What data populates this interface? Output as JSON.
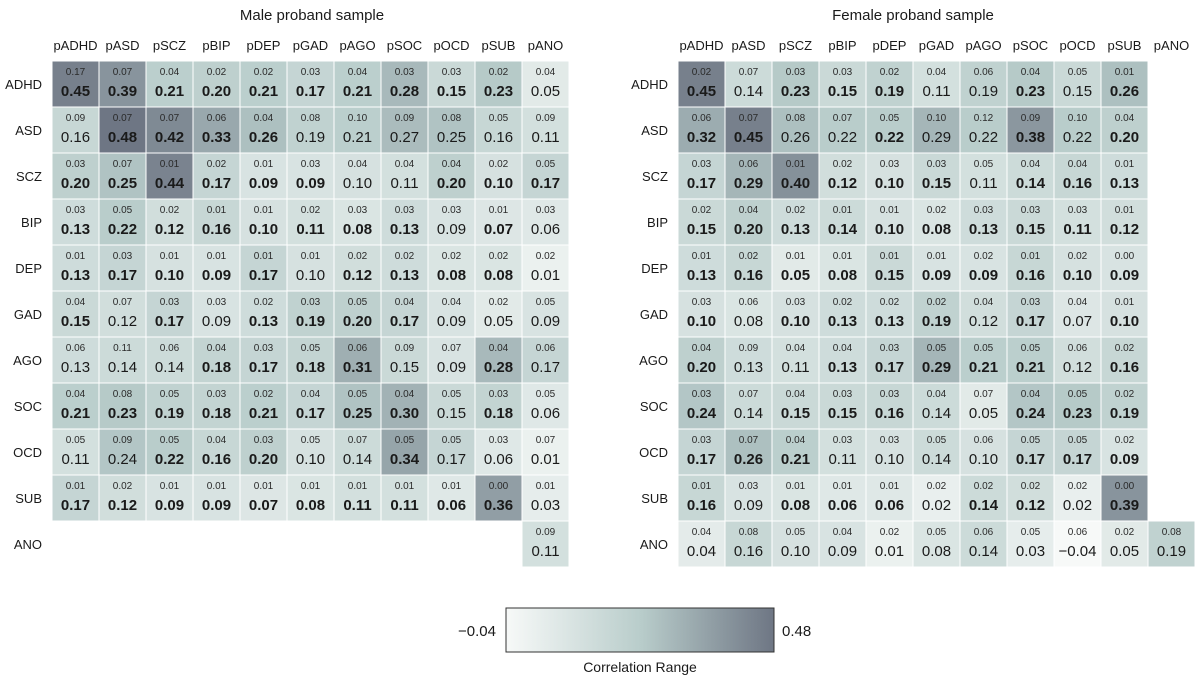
{
  "chart_data": {
    "type": "heatmap",
    "legend": {
      "title": "Correlation Range",
      "min_label": "−0.04",
      "max_label": "0.48",
      "min": -0.04,
      "max": 0.48,
      "color_low": "#f7f9f8",
      "color_mid": "#b9cdcb",
      "color_high": "#6e7684"
    },
    "panels": [
      {
        "title": "Male proband sample",
        "columns": [
          "pADHD",
          "pASD",
          "pSCZ",
          "pBIP",
          "pDEP",
          "pGAD",
          "pAGO",
          "pSOC",
          "pOCD",
          "pSUB",
          "pANO"
        ],
        "rows": [
          {
            "label": "ADHD",
            "est": [
              "0.45",
              "0.39",
              "0.21",
              "0.20",
              "0.21",
              "0.17",
              "0.21",
              "0.28",
              "0.15",
              "0.23",
              "0.05"
            ],
            "se": [
              "0.17",
              "0.07",
              "0.04",
              "0.02",
              "0.02",
              "0.03",
              "0.04",
              "0.03",
              "0.03",
              "0.02",
              "0.04"
            ],
            "bold": [
              1,
              1,
              1,
              1,
              1,
              1,
              1,
              1,
              1,
              1,
              0
            ]
          },
          {
            "label": "ASD",
            "est": [
              "0.16",
              "0.48",
              "0.42",
              "0.33",
              "0.26",
              "0.19",
              "0.21",
              "0.27",
              "0.25",
              "0.16",
              "0.11"
            ],
            "se": [
              "0.09",
              "0.07",
              "0.07",
              "0.06",
              "0.04",
              "0.08",
              "0.10",
              "0.09",
              "0.08",
              "0.05",
              "0.09"
            ],
            "bold": [
              0,
              1,
              1,
              1,
              1,
              0,
              0,
              0,
              0,
              0,
              0
            ]
          },
          {
            "label": "SCZ",
            "est": [
              "0.20",
              "0.25",
              "0.44",
              "0.17",
              "0.09",
              "0.09",
              "0.10",
              "0.11",
              "0.20",
              "0.10",
              "0.17"
            ],
            "se": [
              "0.03",
              "0.07",
              "0.01",
              "0.02",
              "0.01",
              "0.03",
              "0.04",
              "0.04",
              "0.04",
              "0.02",
              "0.05"
            ],
            "bold": [
              1,
              1,
              1,
              1,
              1,
              1,
              0,
              0,
              1,
              1,
              1
            ]
          },
          {
            "label": "BIP",
            "est": [
              "0.13",
              "0.22",
              "0.12",
              "0.16",
              "0.10",
              "0.11",
              "0.08",
              "0.13",
              "0.09",
              "0.07",
              "0.06"
            ],
            "se": [
              "0.03",
              "0.05",
              "0.02",
              "0.01",
              "0.01",
              "0.02",
              "0.03",
              "0.03",
              "0.03",
              "0.01",
              "0.03"
            ],
            "bold": [
              1,
              1,
              1,
              1,
              1,
              1,
              1,
              1,
              0,
              1,
              0
            ]
          },
          {
            "label": "DEP",
            "est": [
              "0.13",
              "0.17",
              "0.10",
              "0.09",
              "0.17",
              "0.10",
              "0.12",
              "0.13",
              "0.08",
              "0.08",
              "0.01"
            ],
            "se": [
              "0.01",
              "0.03",
              "0.01",
              "0.01",
              "0.01",
              "0.01",
              "0.02",
              "0.02",
              "0.02",
              "0.02",
              "0.02"
            ],
            "bold": [
              1,
              1,
              1,
              1,
              1,
              0,
              1,
              1,
              1,
              1,
              0
            ]
          },
          {
            "label": "GAD",
            "est": [
              "0.15",
              "0.12",
              "0.17",
              "0.09",
              "0.13",
              "0.19",
              "0.20",
              "0.17",
              "0.09",
              "0.05",
              "0.09"
            ],
            "se": [
              "0.04",
              "0.07",
              "0.03",
              "0.03",
              "0.02",
              "0.03",
              "0.05",
              "0.04",
              "0.04",
              "0.02",
              "0.05"
            ],
            "bold": [
              1,
              0,
              1,
              0,
              1,
              1,
              1,
              1,
              0,
              0,
              0
            ]
          },
          {
            "label": "AGO",
            "est": [
              "0.13",
              "0.14",
              "0.14",
              "0.18",
              "0.17",
              "0.18",
              "0.31",
              "0.15",
              "0.09",
              "0.28",
              "0.17"
            ],
            "se": [
              "0.06",
              "0.11",
              "0.06",
              "0.04",
              "0.03",
              "0.05",
              "0.06",
              "0.09",
              "0.07",
              "0.04",
              "0.06"
            ],
            "bold": [
              0,
              0,
              0,
              1,
              1,
              1,
              1,
              0,
              0,
              1,
              0
            ]
          },
          {
            "label": "SOC",
            "est": [
              "0.21",
              "0.23",
              "0.19",
              "0.18",
              "0.21",
              "0.17",
              "0.25",
              "0.30",
              "0.15",
              "0.18",
              "0.06"
            ],
            "se": [
              "0.04",
              "0.08",
              "0.05",
              "0.03",
              "0.02",
              "0.04",
              "0.05",
              "0.04",
              "0.05",
              "0.03",
              "0.05"
            ],
            "bold": [
              1,
              1,
              1,
              1,
              1,
              1,
              1,
              1,
              0,
              1,
              0
            ]
          },
          {
            "label": "OCD",
            "est": [
              "0.11",
              "0.24",
              "0.22",
              "0.16",
              "0.20",
              "0.10",
              "0.14",
              "0.34",
              "0.17",
              "0.06",
              "0.01"
            ],
            "se": [
              "0.05",
              "0.09",
              "0.05",
              "0.04",
              "0.03",
              "0.05",
              "0.07",
              "0.05",
              "0.05",
              "0.03",
              "0.07"
            ],
            "bold": [
              0,
              0,
              1,
              1,
              1,
              0,
              0,
              1,
              0,
              0,
              0
            ]
          },
          {
            "label": "SUB",
            "est": [
              "0.17",
              "0.12",
              "0.09",
              "0.09",
              "0.07",
              "0.08",
              "0.11",
              "0.11",
              "0.06",
              "0.36",
              "0.03"
            ],
            "se": [
              "0.01",
              "0.02",
              "0.01",
              "0.01",
              "0.01",
              "0.01",
              "0.01",
              "0.01",
              "0.01",
              "0.00",
              "0.01"
            ],
            "bold": [
              1,
              1,
              1,
              1,
              1,
              1,
              1,
              1,
              1,
              1,
              0
            ]
          },
          {
            "label": "ANO",
            "est": [
              null,
              null,
              null,
              null,
              null,
              null,
              null,
              null,
              null,
              null,
              "0.11"
            ],
            "se": [
              null,
              null,
              null,
              null,
              null,
              null,
              null,
              null,
              null,
              null,
              "0.09"
            ],
            "bold": [
              0,
              0,
              0,
              0,
              0,
              0,
              0,
              0,
              0,
              0,
              0
            ]
          }
        ]
      },
      {
        "title": "Female proband sample",
        "columns": [
          "pADHD",
          "pASD",
          "pSCZ",
          "pBIP",
          "pDEP",
          "pGAD",
          "pAGO",
          "pSOC",
          "pOCD",
          "pSUB",
          "pANO"
        ],
        "rows": [
          {
            "label": "ADHD",
            "est": [
              "0.45",
              "0.14",
              "0.23",
              "0.15",
              "0.19",
              "0.11",
              "0.19",
              "0.23",
              "0.15",
              "0.26",
              null
            ],
            "se": [
              "0.02",
              "0.07",
              "0.03",
              "0.03",
              "0.02",
              "0.04",
              "0.06",
              "0.04",
              "0.05",
              "0.01",
              null
            ],
            "bold": [
              1,
              0,
              1,
              1,
              1,
              0,
              0,
              1,
              0,
              1,
              0
            ]
          },
          {
            "label": "ASD",
            "est": [
              "0.32",
              "0.45",
              "0.26",
              "0.22",
              "0.22",
              "0.29",
              "0.22",
              "0.38",
              "0.22",
              "0.20",
              null
            ],
            "se": [
              "0.06",
              "0.07",
              "0.08",
              "0.07",
              "0.05",
              "0.10",
              "0.12",
              "0.09",
              "0.10",
              "0.04",
              null
            ],
            "bold": [
              1,
              1,
              0,
              0,
              1,
              0,
              0,
              1,
              0,
              1,
              0
            ]
          },
          {
            "label": "SCZ",
            "est": [
              "0.17",
              "0.29",
              "0.40",
              "0.12",
              "0.10",
              "0.15",
              "0.11",
              "0.14",
              "0.16",
              "0.13",
              null
            ],
            "se": [
              "0.03",
              "0.06",
              "0.01",
              "0.02",
              "0.03",
              "0.03",
              "0.05",
              "0.04",
              "0.04",
              "0.01",
              null
            ],
            "bold": [
              1,
              1,
              1,
              1,
              1,
              1,
              0,
              1,
              1,
              1,
              0
            ]
          },
          {
            "label": "BIP",
            "est": [
              "0.15",
              "0.20",
              "0.13",
              "0.14",
              "0.10",
              "0.08",
              "0.13",
              "0.15",
              "0.11",
              "0.12",
              null
            ],
            "se": [
              "0.02",
              "0.04",
              "0.02",
              "0.01",
              "0.01",
              "0.02",
              "0.03",
              "0.03",
              "0.03",
              "0.01",
              null
            ],
            "bold": [
              1,
              1,
              1,
              1,
              1,
              1,
              1,
              1,
              1,
              1,
              0
            ]
          },
          {
            "label": "DEP",
            "est": [
              "0.13",
              "0.16",
              "0.05",
              "0.08",
              "0.15",
              "0.09",
              "0.09",
              "0.16",
              "0.10",
              "0.09",
              null
            ],
            "se": [
              "0.01",
              "0.02",
              "0.01",
              "0.01",
              "0.01",
              "0.01",
              "0.02",
              "0.01",
              "0.02",
              "0.00",
              null
            ],
            "bold": [
              1,
              1,
              1,
              1,
              1,
              1,
              1,
              1,
              1,
              1,
              0
            ]
          },
          {
            "label": "GAD",
            "est": [
              "0.10",
              "0.08",
              "0.10",
              "0.13",
              "0.13",
              "0.19",
              "0.12",
              "0.17",
              "0.07",
              "0.10",
              null
            ],
            "se": [
              "0.03",
              "0.06",
              "0.03",
              "0.02",
              "0.02",
              "0.02",
              "0.04",
              "0.03",
              "0.04",
              "0.01",
              null
            ],
            "bold": [
              1,
              0,
              1,
              1,
              1,
              1,
              0,
              1,
              0,
              1,
              0
            ]
          },
          {
            "label": "AGO",
            "est": [
              "0.20",
              "0.13",
              "0.11",
              "0.13",
              "0.17",
              "0.29",
              "0.21",
              "0.21",
              "0.12",
              "0.16",
              null
            ],
            "se": [
              "0.04",
              "0.09",
              "0.04",
              "0.04",
              "0.03",
              "0.05",
              "0.05",
              "0.05",
              "0.06",
              "0.02",
              null
            ],
            "bold": [
              1,
              0,
              0,
              1,
              1,
              1,
              1,
              1,
              0,
              1,
              0
            ]
          },
          {
            "label": "SOC",
            "est": [
              "0.24",
              "0.14",
              "0.15",
              "0.15",
              "0.16",
              "0.14",
              "0.05",
              "0.24",
              "0.23",
              "0.19",
              null
            ],
            "se": [
              "0.03",
              "0.07",
              "0.04",
              "0.03",
              "0.03",
              "0.04",
              "0.07",
              "0.04",
              "0.05",
              "0.02",
              null
            ],
            "bold": [
              1,
              0,
              1,
              1,
              1,
              0,
              0,
              1,
              1,
              1,
              0
            ]
          },
          {
            "label": "OCD",
            "est": [
              "0.17",
              "0.26",
              "0.21",
              "0.11",
              "0.10",
              "0.14",
              "0.10",
              "0.17",
              "0.17",
              "0.09",
              null
            ],
            "se": [
              "0.03",
              "0.07",
              "0.04",
              "0.03",
              "0.03",
              "0.05",
              "0.06",
              "0.05",
              "0.05",
              "0.02",
              null
            ],
            "bold": [
              1,
              1,
              1,
              0,
              0,
              0,
              0,
              1,
              1,
              1,
              0
            ]
          },
          {
            "label": "SUB",
            "est": [
              "0.16",
              "0.09",
              "0.08",
              "0.06",
              "0.06",
              "0.02",
              "0.14",
              "0.12",
              "0.02",
              "0.39",
              null
            ],
            "se": [
              "0.01",
              "0.03",
              "0.01",
              "0.01",
              "0.01",
              "0.02",
              "0.02",
              "0.02",
              "0.02",
              "0.00",
              null
            ],
            "bold": [
              1,
              0,
              1,
              1,
              1,
              0,
              1,
              1,
              0,
              1,
              0
            ]
          },
          {
            "label": "ANO",
            "est": [
              "0.04",
              "0.16",
              "0.10",
              "0.09",
              "0.01",
              "0.08",
              "0.14",
              "0.03",
              "−0.04",
              "0.05",
              "0.19"
            ],
            "se": [
              "0.04",
              "0.08",
              "0.05",
              "0.04",
              "0.02",
              "0.05",
              "0.06",
              "0.05",
              "0.06",
              "0.02",
              "0.08"
            ],
            "bold": [
              0,
              0,
              0,
              0,
              0,
              0,
              0,
              0,
              0,
              0,
              0
            ]
          }
        ]
      }
    ]
  }
}
